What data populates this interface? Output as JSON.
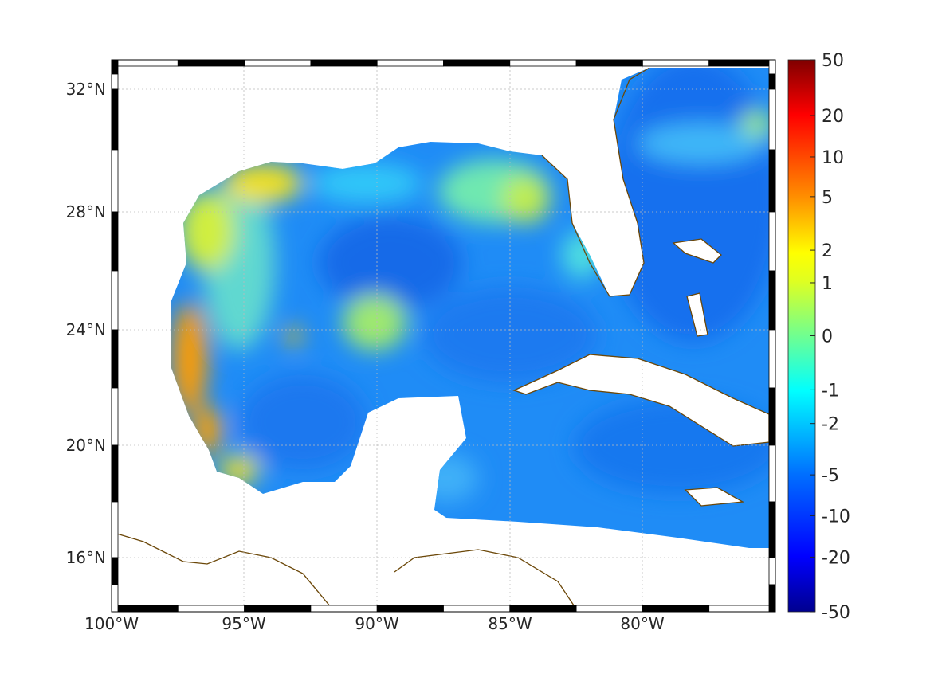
{
  "chart_data": {
    "type": "heatmap",
    "title": "",
    "projection": "map",
    "lon_range": [
      -100,
      -75
    ],
    "lat_range": [
      14,
      33
    ],
    "x_ticks": [
      {
        "value": -100,
        "label": "100°W"
      },
      {
        "value": -95,
        "label": "95°W"
      },
      {
        "value": -90,
        "label": "90°W"
      },
      {
        "value": -85,
        "label": "85°W"
      },
      {
        "value": -80,
        "label": "80°W"
      }
    ],
    "y_ticks": [
      {
        "value": 32,
        "label": "32°N"
      },
      {
        "value": 28,
        "label": "28°N"
      },
      {
        "value": 24,
        "label": "24°N"
      },
      {
        "value": 20,
        "label": "20°N"
      },
      {
        "value": 16,
        "label": "16°N"
      }
    ],
    "grid": true,
    "colorbar": {
      "placement": "right",
      "colormap": "jet",
      "range": [
        -50,
        50
      ],
      "ticks": [
        {
          "value": 50,
          "label": "50",
          "frac": 1.0
        },
        {
          "value": 20,
          "label": "20",
          "frac": 0.899
        },
        {
          "value": 10,
          "label": "10",
          "frac": 0.824
        },
        {
          "value": 5,
          "label": "5",
          "frac": 0.752
        },
        {
          "value": 2,
          "label": "2",
          "frac": 0.655
        },
        {
          "value": 1,
          "label": "1",
          "frac": 0.596
        },
        {
          "value": 0,
          "label": "0",
          "frac": 0.5
        },
        {
          "value": -1,
          "label": "-1",
          "frac": 0.402
        },
        {
          "value": -2,
          "label": "-2",
          "frac": 0.341
        },
        {
          "value": -5,
          "label": "-5",
          "frac": 0.248
        },
        {
          "value": -10,
          "label": "-10",
          "frac": 0.174
        },
        {
          "value": -20,
          "label": "-20",
          "frac": 0.099
        },
        {
          "value": -50,
          "label": "-50",
          "frac": 0.0
        }
      ]
    },
    "coastline_color": "#6b4708"
  }
}
